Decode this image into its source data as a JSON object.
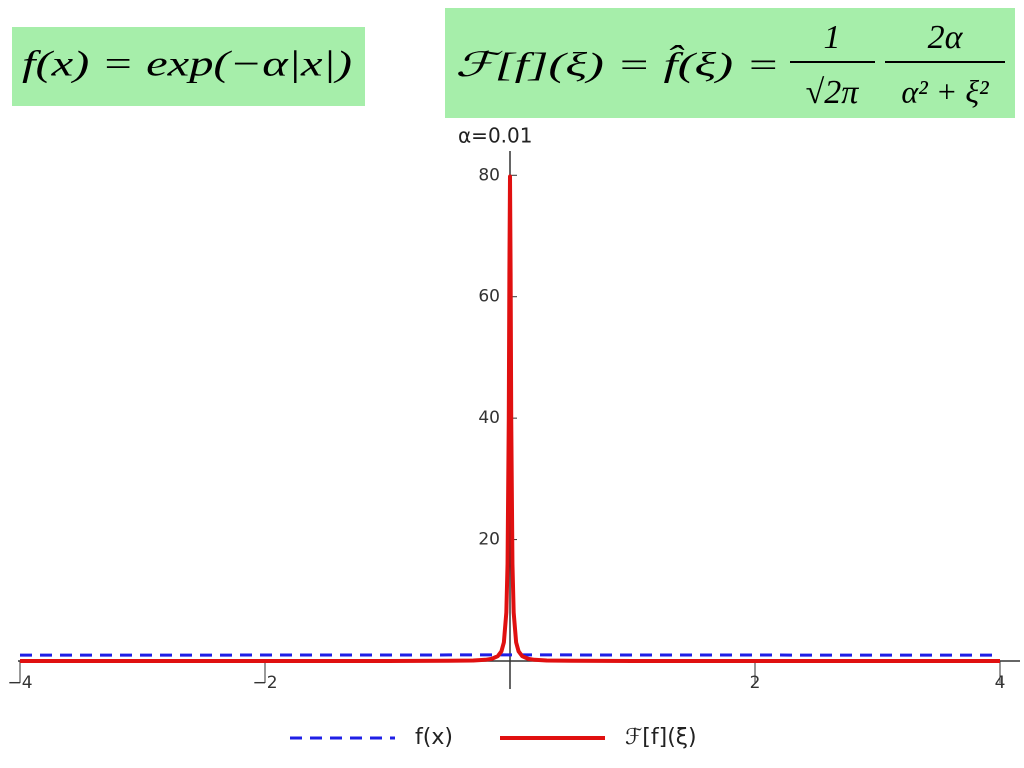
{
  "chart_data": {
    "type": "line",
    "formulas": {
      "definition": "f(x) = exp(−α|x|)",
      "transform_lhs": "ℱ[f](ξ) = f̂(ξ) =",
      "fraction1_numerator": "1",
      "fraction1_denominator": "√2π",
      "fraction2_numerator": "2α",
      "fraction2_denominator": "α² + ξ²"
    },
    "annotations": [
      "α=0.01"
    ],
    "x": [
      -4,
      -3,
      -2,
      -1,
      -0.5,
      -0.3,
      -0.2,
      -0.15,
      -0.1,
      -0.07,
      -0.05,
      -0.03,
      -0.02,
      -0.01,
      -0.005,
      0,
      0.005,
      0.01,
      0.02,
      0.03,
      0.05,
      0.07,
      0.1,
      0.15,
      0.2,
      0.3,
      0.5,
      1,
      2,
      3,
      4
    ],
    "series": [
      {
        "name": "f(x)",
        "color": "#1f1fe6",
        "style": "dashed",
        "values": [
          0.96,
          0.97,
          0.98,
          0.99,
          1,
          1,
          1,
          1,
          1,
          1,
          1,
          1,
          1,
          1,
          1,
          1,
          1,
          1,
          1,
          1,
          1,
          1,
          1,
          1,
          1,
          1,
          1,
          0.99,
          0.98,
          0.97,
          0.96
        ]
      },
      {
        "name": "ℱ[f](ξ)",
        "color": "#e01010",
        "style": "solid",
        "values": [
          0.0005,
          0.0009,
          0.002,
          0.008,
          0.032,
          0.089,
          0.199,
          0.353,
          0.79,
          1.6,
          3.07,
          7.98,
          15.96,
          39.89,
          63.83,
          79.79,
          63.83,
          39.89,
          15.96,
          7.98,
          3.07,
          1.6,
          0.79,
          0.353,
          0.199,
          0.089,
          0.032,
          0.008,
          0.002,
          0.0009,
          0.0005
        ]
      }
    ],
    "xlim": [
      -4,
      4
    ],
    "ylim": [
      0,
      84
    ],
    "xticks": [
      {
        "value": -4,
        "label": "−4"
      },
      {
        "value": -2,
        "label": "−2"
      },
      2,
      4
    ],
    "yticks": [
      20,
      40,
      60,
      80
    ],
    "grid": false,
    "legend": "bottom"
  }
}
